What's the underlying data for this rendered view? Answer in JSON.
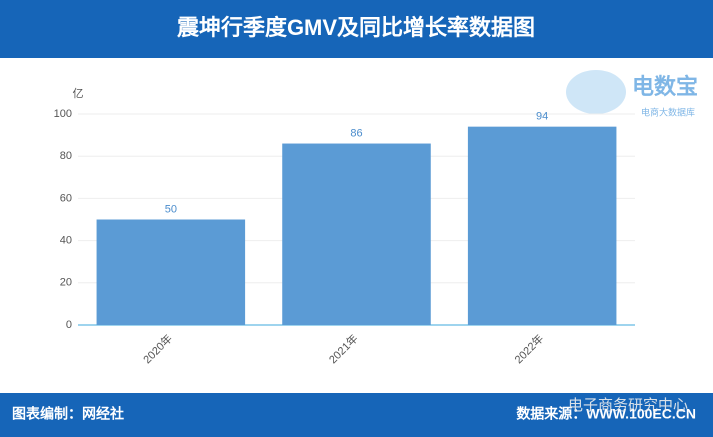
{
  "chart_data": {
    "type": "bar",
    "title": "震坤行季度GMV及同比增长率数据图",
    "y_label": "亿",
    "categories": [
      "2020年",
      "2021年",
      "2022年"
    ],
    "values": [
      50,
      86,
      94
    ],
    "color": "#5b9bd5",
    "ylim": [
      0,
      100
    ],
    "yticks": [
      0,
      20,
      40,
      60,
      80,
      100
    ],
    "grid": true,
    "logo_name": "电数宝",
    "logo_subtitle": "电商大数据库",
    "footer_left": "图表编制：网经社",
    "footer_right": "数据来源：WWW.100EC.CN",
    "watermark": "电子商务研究中心"
  }
}
